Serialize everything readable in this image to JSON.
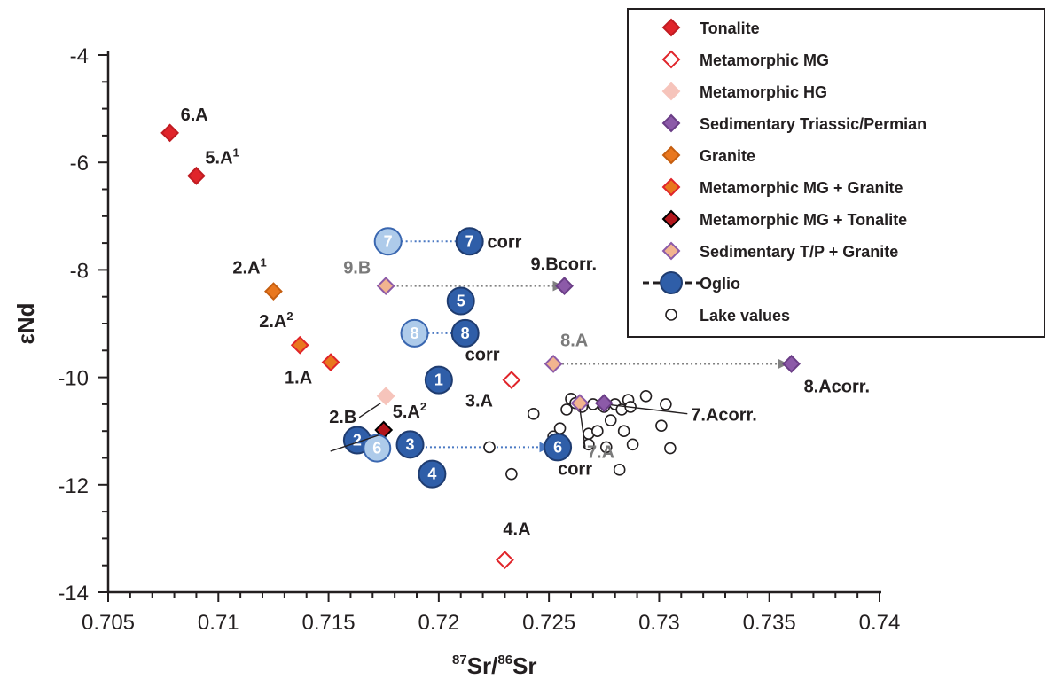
{
  "chart_data": {
    "type": "scatter",
    "title": "",
    "xlabel_main": "Sr/",
    "xlabel_sup1": "87",
    "xlabel_sup2": "86",
    "xlabel_end": "Sr",
    "ylabel": "εNd",
    "xlim": [
      0.705,
      0.74
    ],
    "ylim": [
      -14,
      -4
    ],
    "x_ticks": [
      "0.705",
      "0.71",
      "0.715",
      "0.72",
      "0.725",
      "0.73",
      "0.735",
      "0.74"
    ],
    "y_ticks": [
      "-4",
      "-6",
      "-8",
      "-10",
      "-12",
      "-14"
    ],
    "grid": false,
    "legend_position": "top-right",
    "legend": [
      {
        "label": "Tonalite",
        "marker": "diamond",
        "fill": "#e0242a",
        "stroke": "#c01c22"
      },
      {
        "label": "Metamorphic MG",
        "marker": "diamond",
        "fill": "#ffffff",
        "stroke": "#e0242a"
      },
      {
        "label": "Metamorphic HG",
        "marker": "diamond",
        "fill": "#f6c4bb",
        "stroke": "#f6c4bb"
      },
      {
        "label": "Sedimentary Triassic/Permian",
        "marker": "diamond",
        "fill": "#8c5aa8",
        "stroke": "#6a3d86"
      },
      {
        "label": "Granite",
        "marker": "diamond",
        "fill": "#e9771e",
        "stroke": "#c55e10"
      },
      {
        "label": "Metamorphic MG + Granite",
        "marker": "diamond",
        "fill": "#e9771e",
        "stroke": "#e0242a"
      },
      {
        "label": "Metamorphic MG + Tonalite",
        "marker": "diamond",
        "fill": "#b3161c",
        "stroke": "#000000"
      },
      {
        "label": "Sedimentary T/P + Granite",
        "marker": "diamond",
        "fill": "#f2b48f",
        "stroke": "#8c5aa8"
      },
      {
        "label": "Oglio",
        "marker": "circle-dashed",
        "fill": "#2f5ea8",
        "stroke": "#1f3c70"
      },
      {
        "label": "Lake values",
        "marker": "circle",
        "fill": "#ffffff",
        "stroke": "#231f20"
      }
    ],
    "series": [
      {
        "name": "Tonalite",
        "points": [
          {
            "x": 0.7078,
            "y": -5.45,
            "label": "6.A"
          },
          {
            "x": 0.709,
            "y": -6.25,
            "label": "5.A",
            "sup": "1"
          }
        ]
      },
      {
        "name": "Metamorphic MG",
        "points": [
          {
            "x": 0.7233,
            "y": -10.05,
            "label": "3.A"
          },
          {
            "x": 0.723,
            "y": -13.4,
            "label": "4.A"
          }
        ]
      },
      {
        "name": "Metamorphic HG",
        "points": [
          {
            "x": 0.7176,
            "y": -10.35,
            "label": "2.B"
          }
        ]
      },
      {
        "name": "Granite",
        "points": [
          {
            "x": 0.7125,
            "y": -8.4,
            "label": "2.A",
            "sup": "1"
          }
        ]
      },
      {
        "name": "Metamorphic MG + Granite",
        "points": [
          {
            "x": 0.7137,
            "y": -9.4,
            "label": "2.A",
            "sup": "2"
          },
          {
            "x": 0.7151,
            "y": -9.72,
            "label": "1.A"
          }
        ]
      },
      {
        "name": "Metamorphic MG + Tonalite",
        "points": [
          {
            "x": 0.7175,
            "y": -10.98,
            "label": "5.A",
            "sup": "2"
          }
        ]
      },
      {
        "name": "Sedimentary Triassic/Permian",
        "points": [
          {
            "x": 0.7257,
            "y": -8.3,
            "label": "9.Bcorr."
          },
          {
            "x": 0.736,
            "y": -9.75,
            "label": "8.Acorr."
          },
          {
            "x": 0.7275,
            "y": -10.48,
            "label": "7.Acorr."
          }
        ]
      },
      {
        "name": "Sedimentary T/P + Granite",
        "points": [
          {
            "x": 0.7176,
            "y": -8.3,
            "label": "9.B"
          },
          {
            "x": 0.7252,
            "y": -9.75,
            "label": "8.A"
          },
          {
            "x": 0.7264,
            "y": -10.48,
            "label": "7.A"
          }
        ]
      },
      {
        "name": "Oglio",
        "points": [
          {
            "x": 0.72,
            "y": -10.05,
            "label": "1"
          },
          {
            "x": 0.7163,
            "y": -11.17,
            "label": "2"
          },
          {
            "x": 0.7187,
            "y": -11.25,
            "label": "3"
          },
          {
            "x": 0.7197,
            "y": -11.8,
            "label": "4"
          },
          {
            "x": 0.721,
            "y": -8.58,
            "label": "5"
          },
          {
            "x": 0.7172,
            "y": -11.32,
            "label": "6",
            "faded": true
          },
          {
            "x": 0.7254,
            "y": -11.3,
            "label": "6",
            "corr": true
          },
          {
            "x": 0.7177,
            "y": -7.47,
            "label": "7",
            "faded": true
          },
          {
            "x": 0.7214,
            "y": -7.47,
            "label": "7",
            "corr": true
          },
          {
            "x": 0.7189,
            "y": -9.18,
            "label": "8",
            "faded": true
          },
          {
            "x": 0.7212,
            "y": -9.18,
            "label": "8",
            "corr": true
          }
        ]
      },
      {
        "name": "Lake values",
        "points": [
          {
            "x": 0.7223,
            "y": -11.3
          },
          {
            "x": 0.7233,
            "y": -11.8
          },
          {
            "x": 0.7243,
            "y": -10.68
          },
          {
            "x": 0.7252,
            "y": -11.1
          },
          {
            "x": 0.7255,
            "y": -10.95
          },
          {
            "x": 0.7258,
            "y": -10.6
          },
          {
            "x": 0.726,
            "y": -10.4
          },
          {
            "x": 0.7262,
            "y": -10.48
          },
          {
            "x": 0.7265,
            "y": -10.55
          },
          {
            "x": 0.7268,
            "y": -11.05
          },
          {
            "x": 0.7268,
            "y": -11.25
          },
          {
            "x": 0.727,
            "y": -10.5
          },
          {
            "x": 0.7272,
            "y": -11.0
          },
          {
            "x": 0.7275,
            "y": -10.55
          },
          {
            "x": 0.7276,
            "y": -11.3
          },
          {
            "x": 0.7278,
            "y": -10.8
          },
          {
            "x": 0.728,
            "y": -10.5
          },
          {
            "x": 0.7282,
            "y": -11.72
          },
          {
            "x": 0.7283,
            "y": -10.6
          },
          {
            "x": 0.7284,
            "y": -11.0
          },
          {
            "x": 0.7286,
            "y": -10.42
          },
          {
            "x": 0.7287,
            "y": -10.55
          },
          {
            "x": 0.7288,
            "y": -11.25
          },
          {
            "x": 0.7294,
            "y": -10.35
          },
          {
            "x": 0.7301,
            "y": -10.9
          },
          {
            "x": 0.7303,
            "y": -10.5
          },
          {
            "x": 0.7305,
            "y": -11.32
          }
        ]
      }
    ],
    "corrections": [
      {
        "from": [
          0.7179,
          -7.47
        ],
        "to": [
          0.7212,
          -7.47
        ],
        "color": "#4a78c2"
      },
      {
        "from": [
          0.7191,
          -9.18
        ],
        "to": [
          0.7211,
          -9.18
        ],
        "color": "#4a78c2"
      },
      {
        "from": [
          0.7192,
          -11.3
        ],
        "to": [
          0.725,
          -11.3
        ],
        "color": "#4a78c2"
      },
      {
        "from": [
          0.7179,
          -8.3
        ],
        "to": [
          0.7256,
          -8.3
        ],
        "color": "#808080"
      },
      {
        "from": [
          0.7256,
          -9.75
        ],
        "to": [
          0.7358,
          -9.75
        ],
        "color": "#808080"
      }
    ],
    "annotations": [
      {
        "text": "corr",
        "x": 0.7222,
        "y": -7.47
      },
      {
        "text": "corr",
        "x": 0.7212,
        "y": -9.57
      },
      {
        "text": "corr",
        "x": 0.7254,
        "y": -11.7
      }
    ]
  }
}
